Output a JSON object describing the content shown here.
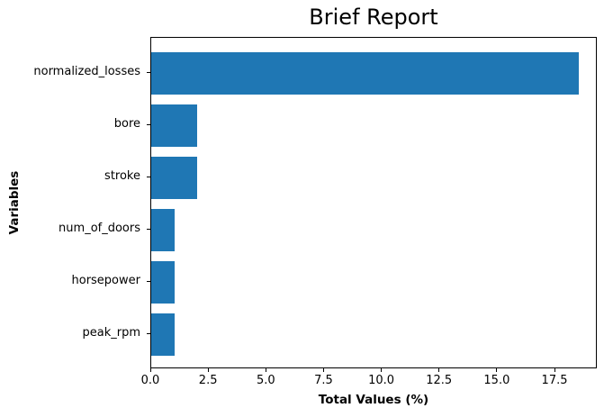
{
  "title": "Brief Report",
  "chart_data": {
    "type": "bar",
    "orientation": "horizontal",
    "title": "Brief Report",
    "categories": [
      "normalized_losses",
      "bore",
      "stroke",
      "num_of_doors",
      "horsepower",
      "peak_rpm"
    ],
    "values": [
      18.5,
      2.0,
      2.0,
      1.0,
      1.0,
      1.0
    ],
    "xlabel": "Total Values (%)",
    "ylabel": "Variables",
    "xlim": [
      0,
      19.33
    ],
    "xticks": [
      0.0,
      2.5,
      5.0,
      7.5,
      10.0,
      12.5,
      15.0,
      17.5
    ],
    "bar_color": "#1f77b4",
    "grid": false,
    "legend": null
  }
}
